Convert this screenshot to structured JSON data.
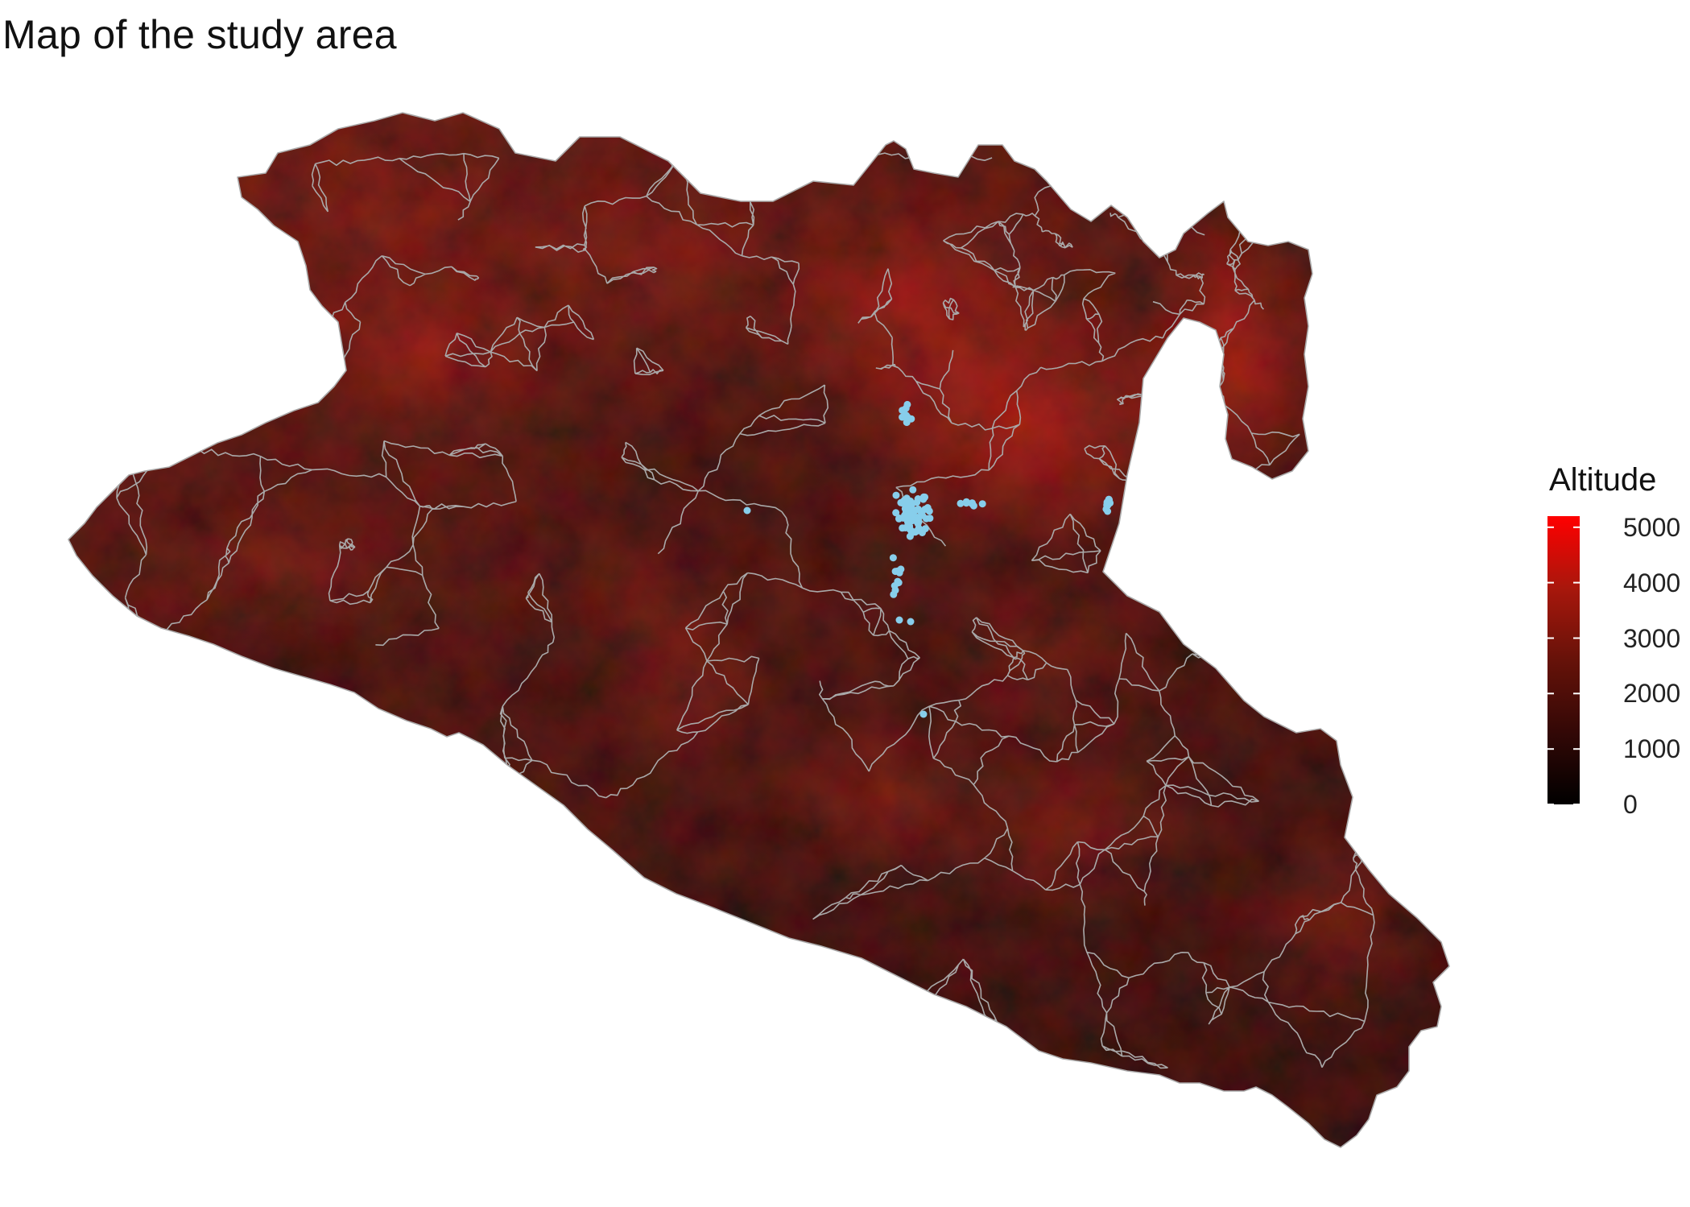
{
  "title": "Map of the study area",
  "legend": {
    "title": "Altitude",
    "labels": [
      "5000",
      "4000",
      "3000",
      "2000",
      "1000",
      "0"
    ],
    "values": [
      5000,
      4000,
      3000,
      2000,
      1000,
      0
    ],
    "min": 0,
    "max": 5200,
    "color_low": "#000000",
    "color_high": "#ff0000"
  },
  "colors": {
    "background": "#ffffff",
    "boundary_lines": "#a9a9a9",
    "sample_points": "#87ceeb",
    "lowland": "#1e0805",
    "highland": "#8a1a10"
  },
  "layers": {
    "raster": "altitude",
    "boundaries": "municipal",
    "points": "sample-sites"
  }
}
